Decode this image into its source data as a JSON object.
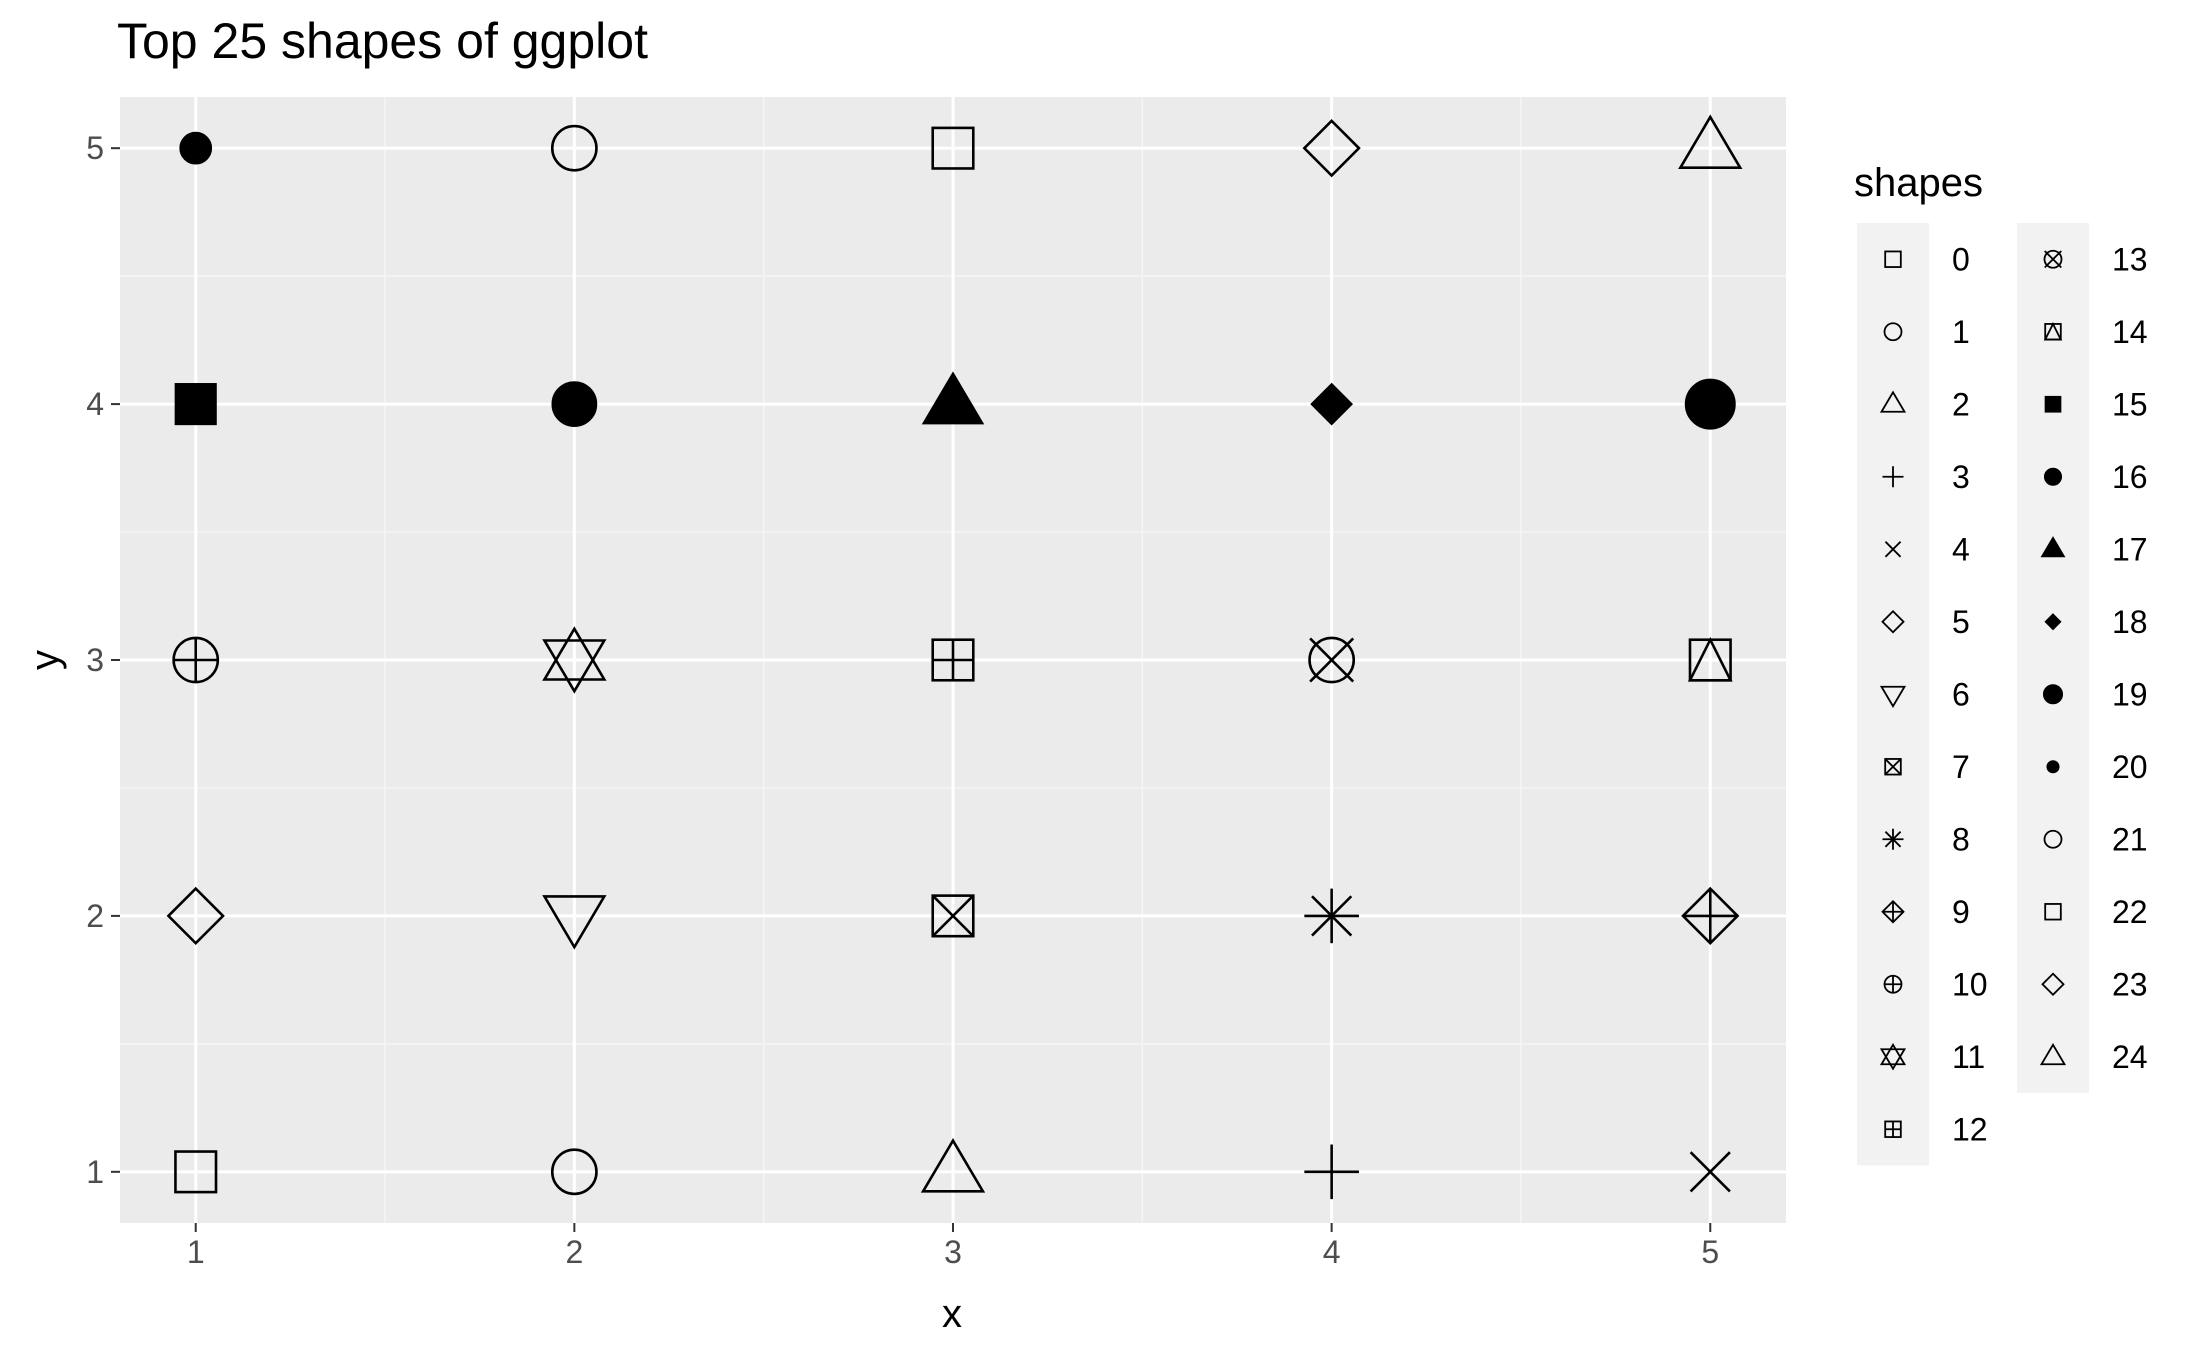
{
  "chart_data": {
    "type": "scatter",
    "title": "Top 25 shapes of ggplot",
    "xlabel": "x",
    "ylabel": "y",
    "xlim": [
      0.8,
      5.2
    ],
    "ylim": [
      0.8,
      5.2
    ],
    "x_ticks": [
      "1",
      "2",
      "3",
      "4",
      "5"
    ],
    "y_ticks": [
      "1",
      "2",
      "3",
      "4",
      "5"
    ],
    "grid": true,
    "legend": {
      "title": "shapes",
      "placement": "right",
      "columns": 2,
      "entries": [
        "0",
        "1",
        "2",
        "3",
        "4",
        "5",
        "6",
        "7",
        "8",
        "9",
        "10",
        "11",
        "12",
        "13",
        "14",
        "15",
        "16",
        "17",
        "18",
        "19",
        "20",
        "21",
        "22",
        "23",
        "24"
      ]
    },
    "points": [
      {
        "x": 1,
        "y": 1,
        "shape": 0
      },
      {
        "x": 2,
        "y": 1,
        "shape": 1
      },
      {
        "x": 3,
        "y": 1,
        "shape": 2
      },
      {
        "x": 4,
        "y": 1,
        "shape": 3
      },
      {
        "x": 5,
        "y": 1,
        "shape": 4
      },
      {
        "x": 1,
        "y": 2,
        "shape": 5
      },
      {
        "x": 2,
        "y": 2,
        "shape": 6
      },
      {
        "x": 3,
        "y": 2,
        "shape": 7
      },
      {
        "x": 4,
        "y": 2,
        "shape": 8
      },
      {
        "x": 5,
        "y": 2,
        "shape": 9
      },
      {
        "x": 1,
        "y": 3,
        "shape": 10
      },
      {
        "x": 2,
        "y": 3,
        "shape": 11
      },
      {
        "x": 3,
        "y": 3,
        "shape": 12
      },
      {
        "x": 4,
        "y": 3,
        "shape": 13
      },
      {
        "x": 5,
        "y": 3,
        "shape": 14
      },
      {
        "x": 1,
        "y": 4,
        "shape": 15
      },
      {
        "x": 2,
        "y": 4,
        "shape": 16
      },
      {
        "x": 3,
        "y": 4,
        "shape": 17
      },
      {
        "x": 4,
        "y": 4,
        "shape": 18
      },
      {
        "x": 5,
        "y": 4,
        "shape": 19
      },
      {
        "x": 1,
        "y": 5,
        "shape": 20
      },
      {
        "x": 2,
        "y": 5,
        "shape": 21
      },
      {
        "x": 3,
        "y": 5,
        "shape": 22
      },
      {
        "x": 4,
        "y": 5,
        "shape": 23
      },
      {
        "x": 5,
        "y": 5,
        "shape": 24
      }
    ],
    "colors": {
      "panel_background": "#ebebeb",
      "grid_major": "#ffffff",
      "grid_minor": "#f5f5f5",
      "legend_key_background": "#f2f2f2",
      "point": "#000000",
      "tick_text": "#4d4d4d"
    }
  }
}
